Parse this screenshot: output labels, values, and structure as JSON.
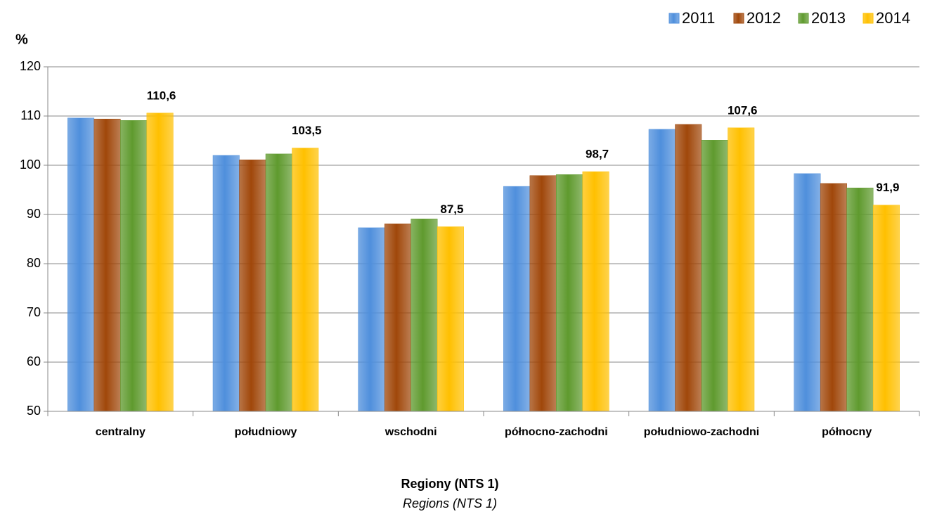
{
  "chart_data": {
    "type": "bar",
    "ylabel": "%",
    "xlabel": "Regiony (NTS 1)",
    "xlabel_en": "Regions (NTS 1)",
    "categories": [
      "centralny",
      "południowy",
      "wschodni",
      "północno-zachodni",
      "południowo-zachodni",
      "północny"
    ],
    "series": [
      {
        "name": "2011",
        "color": "#4f8fdc",
        "values": [
          109.6,
          102.0,
          87.3,
          95.7,
          107.3,
          98.3
        ]
      },
      {
        "name": "2012",
        "color": "#a0470a",
        "values": [
          109.4,
          101.1,
          88.1,
          97.9,
          108.3,
          96.3
        ]
      },
      {
        "name": "2013",
        "color": "#5f9a2e",
        "values": [
          109.1,
          102.3,
          89.1,
          98.1,
          105.1,
          95.4
        ]
      },
      {
        "name": "2014",
        "color": "#ffc000",
        "values": [
          110.6,
          103.5,
          87.5,
          98.7,
          107.6,
          91.9
        ],
        "value_labels": [
          "110,6",
          "103,5",
          "87,5",
          "98,7",
          "107,6",
          "91,9"
        ]
      }
    ],
    "ylim": [
      50,
      120
    ],
    "yticks": [
      50,
      60,
      70,
      80,
      90,
      100,
      110,
      120
    ],
    "grid": true,
    "legend": "top-right"
  }
}
